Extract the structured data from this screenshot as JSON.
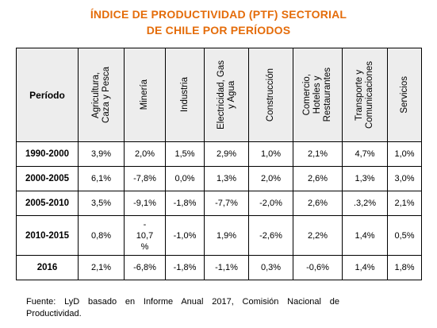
{
  "title": {
    "line1": "ÍNDICE DE PRODUCTIVIDAD (PTF) SECTORIAL",
    "line2": "DE CHILE POR PERÍODOS"
  },
  "table": {
    "period_header": "Período",
    "columns": [
      "Agricultura,\nCaza y Pesca",
      "Minería",
      "Industria",
      "Electricidad, Gas\ny Agua",
      "Construcción",
      "Comercio,\nHoteles y\nRestaurantes",
      "Transporte y\nComunicaciones",
      "Servicios"
    ],
    "rows": [
      {
        "period": "1990-2000",
        "values": [
          "3,9%",
          "2,0%",
          "1,5%",
          "2,9%",
          "1,0%",
          "2,1%",
          "4,7%",
          "1,0%"
        ]
      },
      {
        "period": "2000-2005",
        "values": [
          "6,1%",
          "-7,8%",
          "0,0%",
          "1,3%",
          "2,0%",
          "2,6%",
          "1,3%",
          "3,0%"
        ]
      },
      {
        "period": "2005-2010",
        "values": [
          "3,5%",
          "-9,1%",
          "-1,8%",
          "-7,7%",
          "-2,0%",
          "2,6%",
          ".3,2%",
          "2,1%"
        ]
      },
      {
        "period": "2010-2015",
        "values": [
          "0,8%",
          "-\n10,7\n%",
          "-1,0%",
          "1,9%",
          "-2,6%",
          "2,2%",
          "1,4%",
          "0,5%"
        ]
      },
      {
        "period": "2016",
        "values": [
          "2,1%",
          "-6,8%",
          "-1,8%",
          "-1,1%",
          "0,3%",
          "-0,6%",
          "1,4%",
          "1,8%"
        ]
      }
    ]
  },
  "source": "Fuente: LyD basado en Informe Anual 2017, Comisión Nacional de Productividad.",
  "colors": {
    "title": "#E46C0A",
    "header_bg": "#EDEDED",
    "border": "#000000"
  }
}
